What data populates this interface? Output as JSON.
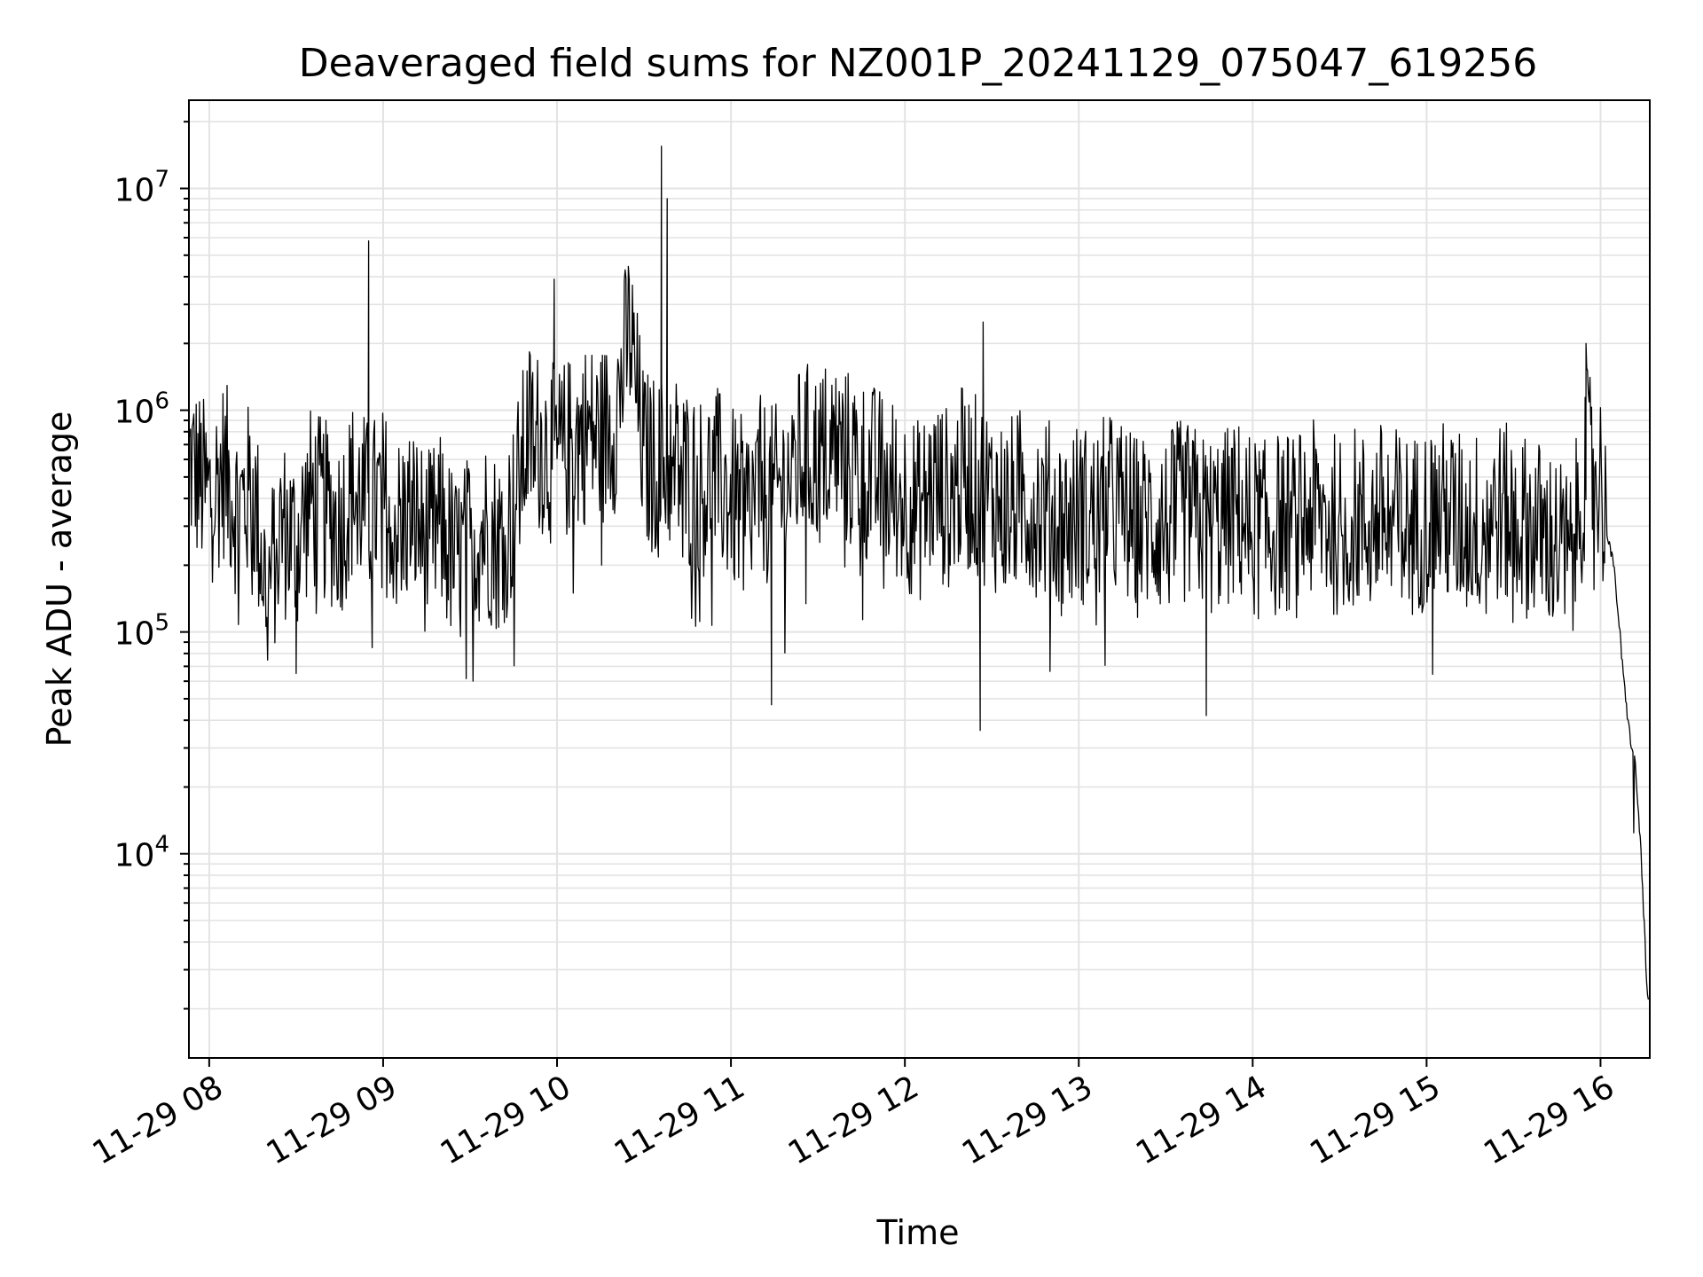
{
  "chart_data": {
    "type": "line",
    "title": "Deaveraged field sums for NZ001P_20241129_075047_619256",
    "xlabel": "Time",
    "ylabel": "Peak ADU - average",
    "yscale": "log",
    "xlim": [
      "2024-11-29 07:53",
      "2024-11-29 16:17"
    ],
    "ylim": [
      1200,
      25000000
    ],
    "grid": true,
    "line_color": "#000000",
    "x_ticks": [
      "11-29 08",
      "11-29 09",
      "11-29 10",
      "11-29 11",
      "11-29 12",
      "11-29 13",
      "11-29 14",
      "11-29 15",
      "11-29 16"
    ],
    "y_ticks": [
      {
        "value": 10000,
        "base": "10",
        "exp": "4"
      },
      {
        "value": 100000,
        "base": "10",
        "exp": "5"
      },
      {
        "value": 1000000,
        "base": "10",
        "exp": "6"
      },
      {
        "value": 10000000,
        "base": "10",
        "exp": "7"
      }
    ],
    "series": [
      {
        "x": [
          "2024-11-29 07:53",
          "2024-11-29 08:00",
          "2024-11-29 08:05",
          "2024-11-29 08:10",
          "2024-11-29 08:15",
          "2024-11-29 08:20",
          "2024-11-29 08:25",
          "2024-11-29 08:30",
          "2024-11-29 08:35",
          "2024-11-29 08:40",
          "2024-11-29 08:45",
          "2024-11-29 08:50",
          "2024-11-29 08:55",
          "2024-11-29 09:00",
          "2024-11-29 09:05",
          "2024-11-29 09:10",
          "2024-11-29 09:15",
          "2024-11-29 09:20",
          "2024-11-29 09:25",
          "2024-11-29 09:30",
          "2024-11-29 09:35",
          "2024-11-29 09:40",
          "2024-11-29 09:45",
          "2024-11-29 09:50",
          "2024-11-29 09:55",
          "2024-11-29 10:00",
          "2024-11-29 10:05",
          "2024-11-29 10:10",
          "2024-11-29 10:15",
          "2024-11-29 10:20",
          "2024-11-29 10:25",
          "2024-11-29 10:30",
          "2024-11-29 10:35",
          "2024-11-29 10:40",
          "2024-11-29 10:45",
          "2024-11-29 10:50",
          "2024-11-29 10:55",
          "2024-11-29 11:00",
          "2024-11-29 11:05",
          "2024-11-29 11:10",
          "2024-11-29 11:15",
          "2024-11-29 11:20",
          "2024-11-29 11:25",
          "2024-11-29 11:30",
          "2024-11-29 11:35",
          "2024-11-29 11:40",
          "2024-11-29 11:45",
          "2024-11-29 11:50",
          "2024-11-29 11:55",
          "2024-11-29 12:00",
          "2024-11-29 12:05",
          "2024-11-29 12:10",
          "2024-11-29 12:15",
          "2024-11-29 12:20",
          "2024-11-29 12:25",
          "2024-11-29 12:30",
          "2024-11-29 12:35",
          "2024-11-29 12:40",
          "2024-11-29 12:45",
          "2024-11-29 12:50",
          "2024-11-29 12:55",
          "2024-11-29 13:00",
          "2024-11-29 13:05",
          "2024-11-29 13:10",
          "2024-11-29 13:15",
          "2024-11-29 13:20",
          "2024-11-29 13:25",
          "2024-11-29 13:30",
          "2024-11-29 13:35",
          "2024-11-29 13:40",
          "2024-11-29 13:45",
          "2024-11-29 13:50",
          "2024-11-29 13:55",
          "2024-11-29 14:00",
          "2024-11-29 14:05",
          "2024-11-29 14:10",
          "2024-11-29 14:15",
          "2024-11-29 14:20",
          "2024-11-29 14:25",
          "2024-11-29 14:30",
          "2024-11-29 14:35",
          "2024-11-29 14:40",
          "2024-11-29 14:45",
          "2024-11-29 14:50",
          "2024-11-29 14:55",
          "2024-11-29 15:00",
          "2024-11-29 15:05",
          "2024-11-29 15:10",
          "2024-11-29 15:15",
          "2024-11-29 15:20",
          "2024-11-29 15:25",
          "2024-11-29 15:30",
          "2024-11-29 15:35",
          "2024-11-29 15:40",
          "2024-11-29 15:45",
          "2024-11-29 15:50",
          "2024-11-29 15:55",
          "2024-11-29 16:00",
          "2024-11-29 16:02",
          "2024-11-29 16:05",
          "2024-11-29 16:08",
          "2024-11-29 16:10",
          "2024-11-29 16:12",
          "2024-11-29 16:14",
          "2024-11-29 16:16",
          "2024-11-29 16:17"
        ],
        "y": [
          600000,
          400000,
          550000,
          350000,
          450000,
          150000,
          300000,
          250000,
          400000,
          350000,
          300000,
          450000,
          350000,
          400000,
          300000,
          350000,
          250000,
          300000,
          200000,
          250000,
          300000,
          250000,
          350000,
          800000,
          700000,
          600000,
          700000,
          800000,
          750000,
          900000,
          2300000,
          600000,
          550000,
          600000,
          500000,
          450000,
          500000,
          400000,
          350000,
          450000,
          400000,
          500000,
          650000,
          600000,
          700000,
          600000,
          550000,
          500000,
          450000,
          400000,
          350000,
          450000,
          400000,
          500000,
          450000,
          400000,
          350000,
          400000,
          380000,
          350000,
          300000,
          350000,
          320000,
          380000,
          350000,
          300000,
          320000,
          300000,
          350000,
          330000,
          300000,
          320000,
          350000,
          300000,
          280000,
          320000,
          300000,
          350000,
          320000,
          300000,
          330000,
          300000,
          350000,
          320000,
          300000,
          330000,
          350000,
          320000,
          300000,
          330000,
          350000,
          320000,
          300000,
          280000,
          250000,
          200000,
          600000,
          500000,
          300000,
          180000,
          60000,
          35000,
          25000,
          10000,
          2500,
          1700
        ]
      }
    ],
    "spikes": [
      {
        "x": "2024-11-29 08:55",
        "y": 5800000
      },
      {
        "x": "2024-11-29 09:59",
        "y": 3900000
      },
      {
        "x": "2024-11-29 10:36",
        "y": 15500000
      },
      {
        "x": "2024-11-29 10:38",
        "y": 9000000
      },
      {
        "x": "2024-11-29 12:27",
        "y": 2500000
      },
      {
        "x": "2024-11-29 15:55",
        "y": 2000000
      }
    ],
    "dips": [
      {
        "x": "2024-11-29 11:14",
        "y": 47000
      },
      {
        "x": "2024-11-29 12:26",
        "y": 36000
      },
      {
        "x": "2024-11-29 13:44",
        "y": 42000
      },
      {
        "x": "2024-11-29 08:30",
        "y": 65000
      },
      {
        "x": "2024-11-29 09:31",
        "y": 60000
      }
    ]
  }
}
